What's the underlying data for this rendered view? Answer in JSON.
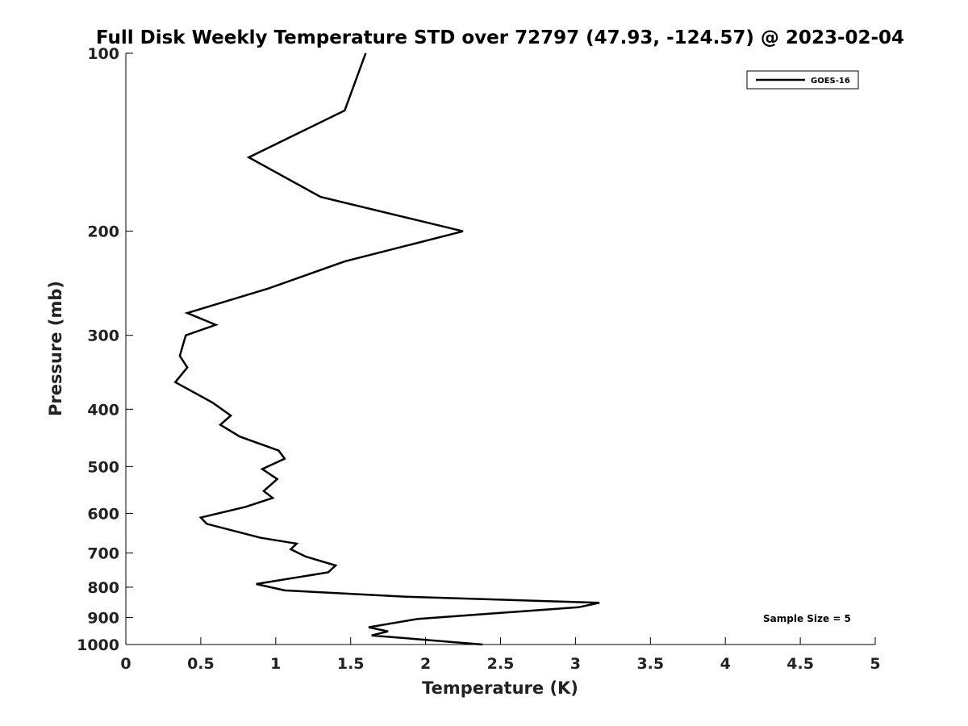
{
  "chart_data": {
    "type": "line",
    "title": "Full Disk Weekly Temperature STD over 72797 (47.93, -124.57) @ 2023-02-04",
    "xlabel": "Temperature (K)",
    "ylabel": "Pressure (mb)",
    "xlim": [
      0,
      5
    ],
    "ylim": [
      100,
      1000
    ],
    "y_scale": "log",
    "y_reversed": true,
    "grid": false,
    "legend_position": "top-right",
    "x_ticks": [
      0,
      0.5,
      1,
      1.5,
      2,
      2.5,
      3,
      3.5,
      4,
      4.5,
      5
    ],
    "x_tick_labels": [
      "0",
      "0.5",
      "1",
      "1.5",
      "2",
      "2.5",
      "3",
      "3.5",
      "4",
      "4.5",
      "5"
    ],
    "y_ticks": [
      100,
      200,
      300,
      400,
      500,
      600,
      700,
      800,
      900,
      1000
    ],
    "y_tick_labels": [
      "100",
      "200",
      "300",
      "400",
      "500",
      "600",
      "700",
      "800",
      "900",
      "1000"
    ],
    "series": [
      {
        "name": "GOES-16",
        "color": "#000000",
        "points": [
          [
            1.6,
            100
          ],
          [
            1.46,
            125
          ],
          [
            0.82,
            150
          ],
          [
            1.3,
            175
          ],
          [
            2.25,
            200
          ],
          [
            1.46,
            225
          ],
          [
            0.95,
            250
          ],
          [
            0.41,
            275
          ],
          [
            0.6,
            288
          ],
          [
            0.4,
            300
          ],
          [
            0.36,
            325
          ],
          [
            0.41,
            340
          ],
          [
            0.33,
            360
          ],
          [
            0.58,
            390
          ],
          [
            0.7,
            410
          ],
          [
            0.63,
            425
          ],
          [
            0.76,
            445
          ],
          [
            1.02,
            470
          ],
          [
            1.06,
            485
          ],
          [
            0.91,
            505
          ],
          [
            1.01,
            525
          ],
          [
            0.92,
            550
          ],
          [
            0.98,
            565
          ],
          [
            0.8,
            585
          ],
          [
            0.5,
            610
          ],
          [
            0.54,
            625
          ],
          [
            0.9,
            660
          ],
          [
            1.14,
            675
          ],
          [
            1.1,
            690
          ],
          [
            1.2,
            710
          ],
          [
            1.4,
            735
          ],
          [
            1.35,
            755
          ],
          [
            0.87,
            790
          ],
          [
            1.06,
            810
          ],
          [
            1.87,
            830
          ],
          [
            3.16,
            850
          ],
          [
            3.02,
            865
          ],
          [
            1.95,
            905
          ],
          [
            1.62,
            935
          ],
          [
            1.75,
            950
          ],
          [
            1.64,
            965
          ],
          [
            2.38,
            1000
          ]
        ]
      }
    ],
    "annotations": [
      "Sample Size = 5"
    ]
  }
}
